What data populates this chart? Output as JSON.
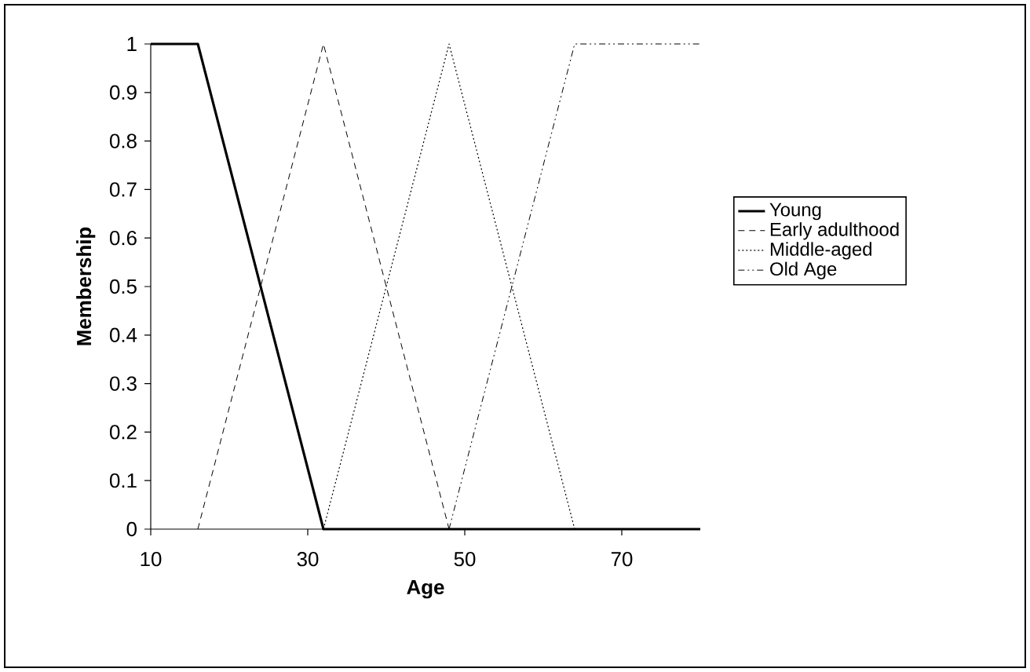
{
  "chart_data": {
    "type": "line",
    "xlabel": "Age",
    "ylabel": "Membership",
    "x": [
      10,
      16,
      32,
      80
    ],
    "xlim": [
      10,
      80
    ],
    "xticks": [
      10,
      30,
      50,
      70
    ],
    "ylim": [
      0,
      1
    ],
    "yticks": [
      0,
      0.1,
      0.2,
      0.3,
      0.4,
      0.5,
      0.6,
      0.7,
      0.8,
      0.9,
      1
    ],
    "legend": "right",
    "grid": false,
    "marker": "none",
    "series": [
      {
        "name": "Young",
        "color": "#000000",
        "line_style": "solid",
        "values": [
          1,
          1,
          0,
          0
        ]
      },
      {
        "name": "Early adulthood",
        "color": "#000000",
        "line_style": "dashed",
        "x": [
          16,
          32,
          48
        ],
        "values": [
          0,
          1,
          0
        ]
      },
      {
        "name": "Middle-aged",
        "color": "#000000",
        "line_style": "dotted",
        "x": [
          32,
          48,
          64
        ],
        "values": [
          0,
          1,
          0
        ]
      },
      {
        "name": "Old Age",
        "color": "#000000",
        "line_style": "dashdot",
        "x": [
          48,
          64,
          80
        ],
        "values": [
          0,
          1,
          1
        ]
      }
    ]
  }
}
